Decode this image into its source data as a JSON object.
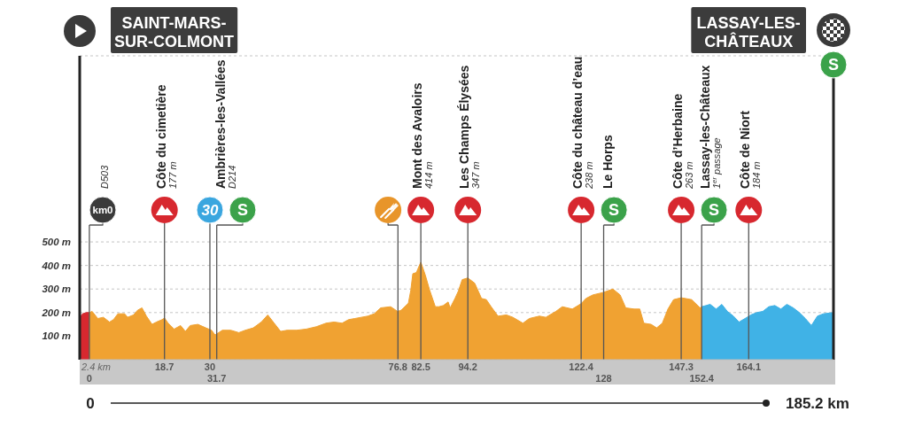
{
  "chart_data": {
    "type": "area",
    "xlim": [
      -2.4,
      185.2
    ],
    "xticks": [
      18.7,
      30,
      76.8,
      82.5,
      94.2,
      122.4,
      147.3,
      164.1
    ],
    "x2lim": [
      -2.4,
      185.2
    ],
    "x2ticks": [
      0,
      31.7,
      128,
      152.4
    ],
    "ylim": [
      0,
      1290
    ],
    "yticks": [
      {
        "value": 100,
        "label": "100 m"
      },
      {
        "value": 200,
        "label": "200 m"
      },
      {
        "value": 300,
        "label": "300 m"
      },
      {
        "value": 400,
        "label": "400 m"
      },
      {
        "value": 500,
        "label": "500 m"
      }
    ],
    "grid": "y",
    "series": [
      {
        "color": "#d7282f",
        "x": [
          -2.4,
          -1.7,
          -0.7,
          0
        ],
        "values": [
          180,
          195,
          200,
          200
        ]
      },
      {
        "color": "#f0a232",
        "x": [
          0,
          0.7,
          2.1,
          3.5,
          5.0,
          6.0,
          7.1,
          8.8,
          9.5,
          11.0,
          12.0,
          13.1,
          14.2,
          15.6,
          16.7,
          18.1,
          18.7,
          19.6,
          21.1,
          22.7,
          23.9,
          25.1,
          27.0,
          29.0,
          30.4,
          31.3,
          33.1,
          35.2,
          37.2,
          38.8,
          40.8,
          42.8,
          44.4,
          46.0,
          47.6,
          49.2,
          51.6,
          54.0,
          56.5,
          58.9,
          60.9,
          62.9,
          64.5,
          66.1,
          67.7,
          69.3,
          70.9,
          72.5,
          75.0,
          76.7,
          77.6,
          78.5,
          79.4,
          80.0,
          80.5,
          81.4,
          82.0,
          82.5,
          83.6,
          84.7,
          86.1,
          87.0,
          88.1,
          89.3,
          89.8,
          91.0,
          91.8,
          92.8,
          94.2,
          95.9,
          97.6,
          98.8,
          100.0,
          101.7,
          103.8,
          105.4,
          107.9,
          109.5,
          112.0,
          113.6,
          116.1,
          117.7,
          120.2,
          122.4,
          123.6,
          125.3,
          127.8,
          130.3,
          132.1,
          133.5,
          135.6,
          137.0,
          138.0,
          139.8,
          141.2,
          142.6,
          144.0,
          145.4,
          147.3,
          149.9,
          152.0,
          152.4
        ],
        "values": [
          200,
          205,
          175,
          180,
          160,
          170,
          195,
          195,
          180,
          190,
          210,
          220,
          185,
          150,
          160,
          170,
          177,
          155,
          130,
          145,
          120,
          145,
          150,
          135,
          125,
          105,
          125,
          125,
          115,
          125,
          135,
          160,
          190,
          155,
          120,
          125,
          125,
          130,
          140,
          155,
          160,
          155,
          170,
          175,
          180,
          185,
          195,
          220,
          225,
          205,
          210,
          225,
          240,
          295,
          365,
          370,
          395,
          414,
          360,
          295,
          225,
          225,
          230,
          245,
          220,
          260,
          290,
          340,
          347,
          325,
          260,
          255,
          225,
          185,
          190,
          180,
          155,
          175,
          185,
          180,
          205,
          225,
          215,
          238,
          260,
          275,
          285,
          300,
          275,
          220,
          215,
          215,
          155,
          150,
          135,
          155,
          215,
          255,
          263,
          255,
          220,
          225
        ]
      },
      {
        "color": "#40b2e6",
        "x": [
          152.4,
          153.5,
          154.5,
          156.0,
          157.4,
          158.8,
          160.3,
          161.7,
          164.1,
          164.6,
          166.1,
          167.6,
          169.1,
          170.6,
          172.1,
          173.6,
          175.2,
          176.7,
          178.2,
          179.7,
          181.2,
          182.7,
          185.2
        ],
        "values": [
          225,
          230,
          235,
          215,
          235,
          205,
          185,
          160,
          184,
          190,
          200,
          205,
          225,
          230,
          215,
          235,
          220,
          200,
          175,
          145,
          185,
          195,
          200
        ]
      }
    ],
    "ref_lines": [
      {
        "axis": "x",
        "value": -2.4,
        "label": "SAINT-MARS-\nSUR-COLMONT",
        "color": "#222222"
      },
      {
        "axis": "x",
        "value": 0,
        "color": "#555555"
      },
      {
        "axis": "x",
        "value": 18.7,
        "label": "Côte du cimetière\n177 m",
        "color": "#555555"
      },
      {
        "axis": "x",
        "value": 30,
        "color": "#555555"
      },
      {
        "axis": "x",
        "value": 31.7,
        "label": "Ambrières-les-Vallées\nD214",
        "color": "#555555"
      },
      {
        "axis": "x",
        "value": 76.8,
        "color": "#555555"
      },
      {
        "axis": "x",
        "value": 82.5,
        "label": "Mont des Avaloirs\n414 m",
        "color": "#555555"
      },
      {
        "axis": "x",
        "value": 94.2,
        "label": "Les Champs Élysées\n347 m",
        "color": "#555555"
      },
      {
        "axis": "x",
        "value": 122.4,
        "label": "Côte du château d’eau\n238 m",
        "color": "#555555"
      },
      {
        "axis": "x",
        "value": 128,
        "label": "Le Horps",
        "color": "#555555"
      },
      {
        "axis": "x",
        "value": 147.3,
        "label": "Côte d’Herbaine\n263 m",
        "color": "#555555"
      },
      {
        "axis": "x",
        "value": 152.4,
        "label": "Lassay-les-Châteaux\n1$^{er}$ passage",
        "color": "#555555"
      },
      {
        "axis": "x",
        "value": 164.1,
        "label": "Côte de Niort\n184 m",
        "color": "#555555"
      },
      {
        "axis": "x",
        "value": 185.2,
        "label": "LASSAY-LES-\nCHÂTEAUX",
        "color": "#222222"
      }
    ],
    "annotations": [
      "km0",
      "30",
      "S",
      "S",
      "S",
      "S",
      "2.4 km",
      "0",
      "185.2 km",
      "D503"
    ]
  }
}
